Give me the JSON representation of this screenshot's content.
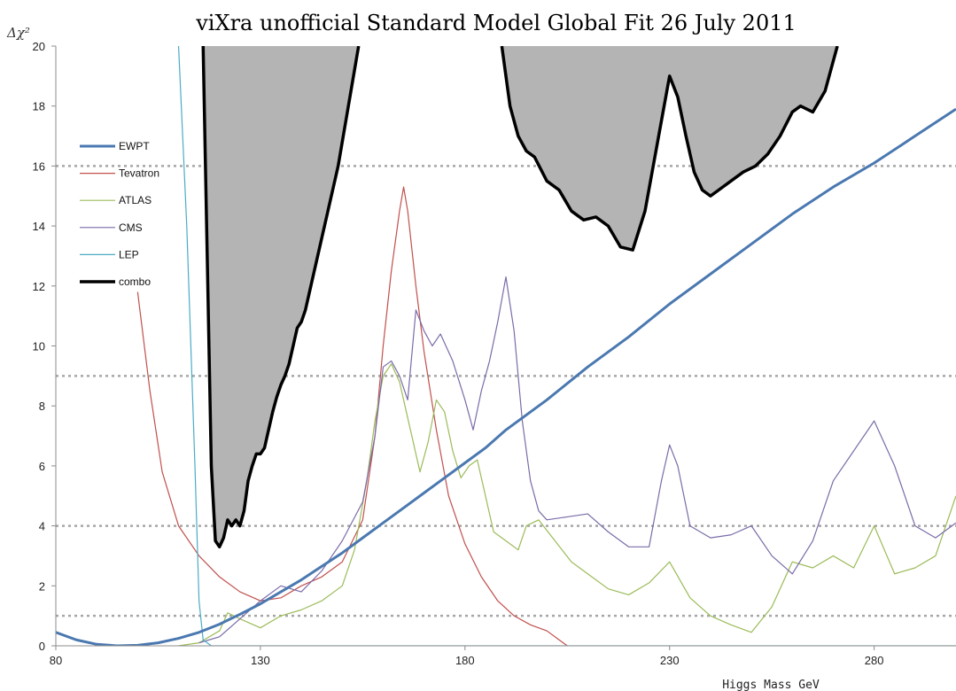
{
  "chart_data": {
    "type": "line",
    "title": "viXra unofficial Standard Model Global Fit   26 July 2011",
    "xlabel": "Higgs Mass GeV",
    "ylabel": "Δχ²",
    "xlim": [
      80,
      300
    ],
    "ylim": [
      0,
      20
    ],
    "xticks": [
      80,
      130,
      180,
      230,
      280
    ],
    "yticks": [
      0,
      2,
      4,
      6,
      8,
      10,
      12,
      14,
      16,
      18,
      20
    ],
    "reference_lines": [
      1,
      4,
      9,
      16
    ],
    "legend_position": "top-left",
    "series": [
      {
        "name": "EWPT",
        "color": "#4a78b0",
        "width": 3,
        "x": [
          80,
          85,
          90,
          95,
          100,
          105,
          110,
          115,
          120,
          125,
          130,
          135,
          140,
          145,
          150,
          155,
          160,
          165,
          170,
          175,
          180,
          185,
          190,
          200,
          210,
          220,
          230,
          240,
          250,
          260,
          270,
          280,
          290,
          300
        ],
        "y": [
          0.45,
          0.2,
          0.05,
          0,
          0.02,
          0.1,
          0.25,
          0.45,
          0.72,
          1.05,
          1.4,
          1.8,
          2.2,
          2.65,
          3.1,
          3.6,
          4.1,
          4.6,
          5.1,
          5.6,
          6.1,
          6.6,
          7.2,
          8.2,
          9.3,
          10.3,
          11.4,
          12.4,
          13.4,
          14.4,
          15.3,
          16.1,
          17.0,
          17.9
        ]
      },
      {
        "name": "Tevatron",
        "color": "#c0504d",
        "width": 1.2,
        "x": [
          100,
          103,
          106,
          110,
          115,
          120,
          125,
          130,
          135,
          140,
          145,
          150,
          155,
          158,
          160,
          162,
          164,
          165,
          166,
          168,
          170,
          173,
          176,
          180,
          184,
          188,
          192,
          196,
          200,
          203,
          205
        ],
        "y": [
          11.8,
          8.5,
          5.8,
          4.0,
          3.0,
          2.3,
          1.8,
          1.5,
          1.6,
          2.0,
          2.3,
          2.8,
          4.2,
          7.0,
          10.0,
          12.5,
          14.5,
          15.3,
          14.5,
          12.0,
          9.8,
          7.2,
          5.0,
          3.4,
          2.3,
          1.5,
          1.0,
          0.7,
          0.5,
          0.2,
          0
        ]
      },
      {
        "name": "ATLAS",
        "color": "#9bbb59",
        "width": 1.2,
        "x": [
          110,
          115,
          120,
          122,
          125,
          130,
          135,
          140,
          145,
          150,
          153,
          156,
          158,
          160,
          162,
          164,
          165,
          167,
          169,
          171,
          173,
          175,
          177,
          179,
          181,
          183,
          185,
          187,
          190,
          193,
          195,
          198,
          202,
          206,
          210,
          215,
          220,
          225,
          230,
          235,
          240,
          245,
          250,
          255,
          260,
          265,
          270,
          275,
          280,
          285,
          290,
          295,
          300
        ],
        "y": [
          0,
          0.1,
          0.5,
          1.1,
          0.9,
          0.6,
          1.0,
          1.2,
          1.5,
          2.0,
          3.2,
          5.5,
          7.5,
          9.0,
          9.4,
          8.8,
          8.2,
          7.0,
          5.8,
          6.8,
          8.2,
          7.8,
          6.5,
          5.6,
          6.0,
          6.2,
          5.0,
          3.8,
          3.5,
          3.2,
          4.0,
          4.2,
          3.5,
          2.8,
          2.4,
          1.9,
          1.7,
          2.1,
          2.8,
          1.6,
          1.0,
          0.7,
          0.45,
          1.3,
          2.8,
          2.6,
          3.0,
          2.6,
          4.0,
          2.4,
          2.6,
          3.0,
          5.0
        ]
      },
      {
        "name": "CMS",
        "color": "#7b6ba8",
        "width": 1.2,
        "x": [
          115,
          120,
          125,
          130,
          135,
          140,
          145,
          150,
          155,
          158,
          160,
          162,
          164,
          166,
          168,
          170,
          172,
          174,
          177,
          180,
          182,
          184,
          186,
          188,
          190,
          192,
          194,
          196,
          198,
          200,
          205,
          210,
          215,
          220,
          225,
          228,
          230,
          232,
          235,
          240,
          245,
          250,
          255,
          260,
          265,
          270,
          275,
          280,
          285,
          290,
          295,
          300
        ],
        "y": [
          0.1,
          0.3,
          0.9,
          1.5,
          2.0,
          1.8,
          2.5,
          3.5,
          4.8,
          7.0,
          9.3,
          9.5,
          9.0,
          8.2,
          11.2,
          10.5,
          10.0,
          10.4,
          9.5,
          8.2,
          7.2,
          8.5,
          9.5,
          10.8,
          12.3,
          10.5,
          7.5,
          5.5,
          4.5,
          4.2,
          4.3,
          4.4,
          3.8,
          3.3,
          3.3,
          5.5,
          6.7,
          6.0,
          4.0,
          3.6,
          3.7,
          4.0,
          3.0,
          2.4,
          3.5,
          5.5,
          6.5,
          7.5,
          6.0,
          4.0,
          3.6,
          4.1
        ]
      },
      {
        "name": "LEP",
        "color": "#4bacc6",
        "width": 1.2,
        "x": [
          110,
          112,
          114,
          115,
          116,
          118,
          120,
          200,
          300
        ],
        "y": [
          20,
          14,
          6,
          1.5,
          0.2,
          0,
          0,
          0,
          0
        ]
      }
    ],
    "combo": {
      "name": "combo",
      "color": "#000000",
      "fill": "#b4b4b4",
      "width": 3.5,
      "regions": [
        {
          "x": [
            116,
            117,
            118,
            119,
            120,
            121,
            122,
            123,
            124,
            125,
            126,
            127,
            128,
            129,
            130,
            131,
            132,
            133,
            134,
            135,
            136,
            137,
            138,
            139,
            140,
            141,
            142,
            143,
            144,
            145,
            146,
            147,
            148,
            149,
            150,
            151,
            152,
            153,
            154
          ],
          "y": [
            20,
            13,
            6,
            3.5,
            3.3,
            3.6,
            4.2,
            4.0,
            4.2,
            4.0,
            4.5,
            5.5,
            6.0,
            6.4,
            6.4,
            6.6,
            7.2,
            7.8,
            8.3,
            8.7,
            9.0,
            9.4,
            10.0,
            10.6,
            10.8,
            11.2,
            11.8,
            12.4,
            13.0,
            13.6,
            14.2,
            14.8,
            15.4,
            16.0,
            16.8,
            17.6,
            18.4,
            19.2,
            20
          ]
        },
        {
          "x": [
            189,
            191,
            193,
            195,
            197,
            200,
            203,
            206,
            209,
            212,
            215,
            218,
            221,
            224,
            226,
            228,
            230,
            232,
            234,
            236,
            238,
            240,
            242,
            245,
            248,
            251,
            254,
            257,
            260,
            262,
            265,
            268,
            271
          ],
          "y": [
            20,
            18.0,
            17.0,
            16.5,
            16.3,
            15.5,
            15.2,
            14.5,
            14.2,
            14.3,
            14.0,
            13.3,
            13.2,
            14.5,
            16.0,
            17.5,
            19.0,
            18.3,
            17.0,
            15.8,
            15.2,
            15.0,
            15.2,
            15.5,
            15.8,
            16.0,
            16.4,
            17.0,
            17.8,
            18.0,
            17.8,
            18.5,
            20
          ]
        }
      ]
    }
  }
}
